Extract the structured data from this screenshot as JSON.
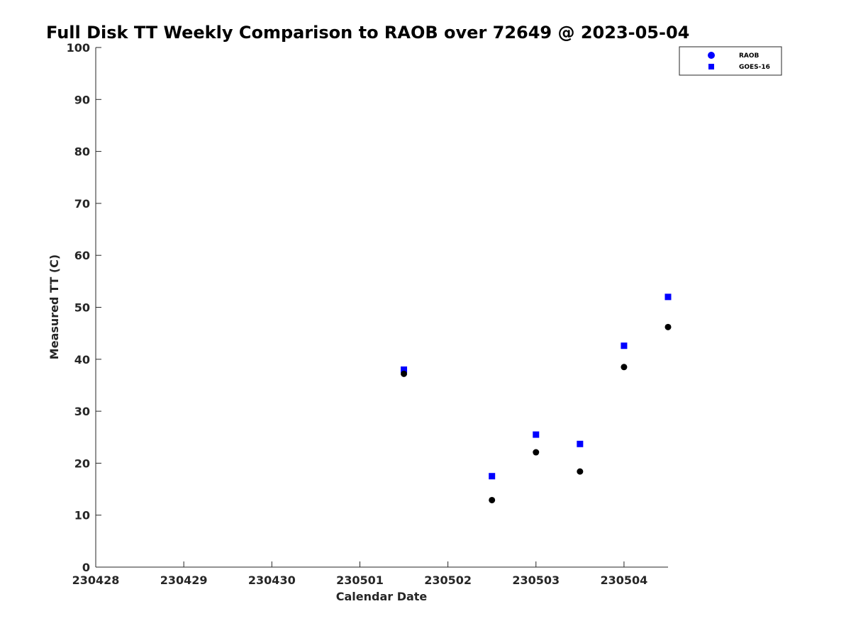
{
  "chart_data": {
    "type": "scatter",
    "title": "Full Disk TT Weekly Comparison to RAOB over 72649 @ 2023-05-04",
    "xlabel": "Calendar Date",
    "ylabel": "Measured TT (C)",
    "xlim": [
      "2023-04-28",
      "2023-05-04 12:00"
    ],
    "ylim": [
      0,
      100
    ],
    "x_tick_labels": [
      "230428",
      "230429",
      "230430",
      "230501",
      "230502",
      "230503",
      "230504"
    ],
    "y_tick_labels": [
      "0",
      "10",
      "20",
      "30",
      "40",
      "50",
      "60",
      "70",
      "80",
      "90",
      "100"
    ],
    "grid": false,
    "legend_position": "top-right",
    "series": [
      {
        "name": "RAOB",
        "marker": "circle",
        "color": "#000000",
        "legend_color": "#0000ff",
        "points": [
          {
            "x": "2023-05-01 12:00",
            "y": 37.2
          },
          {
            "x": "2023-05-02 12:00",
            "y": 12.9
          },
          {
            "x": "2023-05-03 00:00",
            "y": 22.1
          },
          {
            "x": "2023-05-03 12:00",
            "y": 18.4
          },
          {
            "x": "2023-05-04 00:00",
            "y": 38.5
          },
          {
            "x": "2023-05-04 12:00",
            "y": 46.2
          }
        ]
      },
      {
        "name": "GOES-16",
        "marker": "square",
        "color": "#0000ff",
        "legend_color": "#0000ff",
        "points": [
          {
            "x": "2023-05-01 12:00",
            "y": 38.0
          },
          {
            "x": "2023-05-02 12:00",
            "y": 17.5
          },
          {
            "x": "2023-05-03 00:00",
            "y": 25.5
          },
          {
            "x": "2023-05-03 12:00",
            "y": 23.7
          },
          {
            "x": "2023-05-04 00:00",
            "y": 42.6
          },
          {
            "x": "2023-05-04 12:00",
            "y": 52.0
          }
        ]
      }
    ]
  }
}
